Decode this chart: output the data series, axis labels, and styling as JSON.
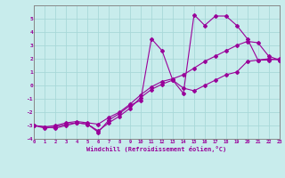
{
  "background_color": "#c8ecec",
  "grid_color": "#a8d8d8",
  "line_color": "#990099",
  "xlabel": "Windchill (Refroidissement éolien,°C)",
  "xlim": [
    0,
    23
  ],
  "ylim": [
    -4,
    6
  ],
  "xticks": [
    0,
    1,
    2,
    3,
    4,
    5,
    6,
    7,
    8,
    9,
    10,
    11,
    12,
    13,
    14,
    15,
    16,
    17,
    18,
    19,
    20,
    21,
    22,
    23
  ],
  "yticks": [
    -4,
    -3,
    -2,
    -1,
    0,
    1,
    2,
    3,
    4,
    5
  ],
  "line1_x": [
    0,
    1,
    2,
    3,
    4,
    5,
    6,
    7,
    8,
    9,
    10,
    11,
    12,
    13,
    14,
    15,
    16,
    17,
    18,
    19,
    20,
    21,
    22,
    23
  ],
  "line1_y": [
    -3.0,
    -3.1,
    -3.2,
    -3.0,
    -2.8,
    -2.9,
    -3.4,
    -2.8,
    -2.3,
    -1.7,
    -0.9,
    -0.3,
    0.1,
    0.4,
    -0.2,
    -0.4,
    0.0,
    0.4,
    0.8,
    1.0,
    1.8,
    1.9,
    2.0,
    1.9
  ],
  "line2_x": [
    0,
    1,
    2,
    3,
    4,
    5,
    6,
    7,
    8,
    9,
    10,
    11,
    12,
    13,
    14,
    15,
    16,
    17,
    18,
    19,
    20,
    21,
    22,
    23
  ],
  "line2_y": [
    -3.0,
    -3.1,
    -3.0,
    -2.8,
    -2.7,
    -2.8,
    -2.9,
    -2.4,
    -2.0,
    -1.4,
    -0.7,
    -0.1,
    0.3,
    0.5,
    0.8,
    1.3,
    1.8,
    2.2,
    2.6,
    3.0,
    3.3,
    3.2,
    2.2,
    1.9
  ],
  "line3_x": [
    0,
    1,
    2,
    3,
    4,
    5,
    6,
    7,
    8,
    9,
    10,
    11,
    12,
    13,
    14,
    15,
    16,
    17,
    18,
    19,
    20,
    21,
    22,
    23
  ],
  "line3_y": [
    -3.0,
    -3.2,
    -3.1,
    -2.9,
    -2.8,
    -2.9,
    -3.5,
    -2.6,
    -2.1,
    -1.5,
    -1.1,
    3.5,
    2.6,
    0.4,
    -0.6,
    5.3,
    4.5,
    5.2,
    5.2,
    4.5,
    3.5,
    1.9,
    1.9,
    2.0
  ]
}
